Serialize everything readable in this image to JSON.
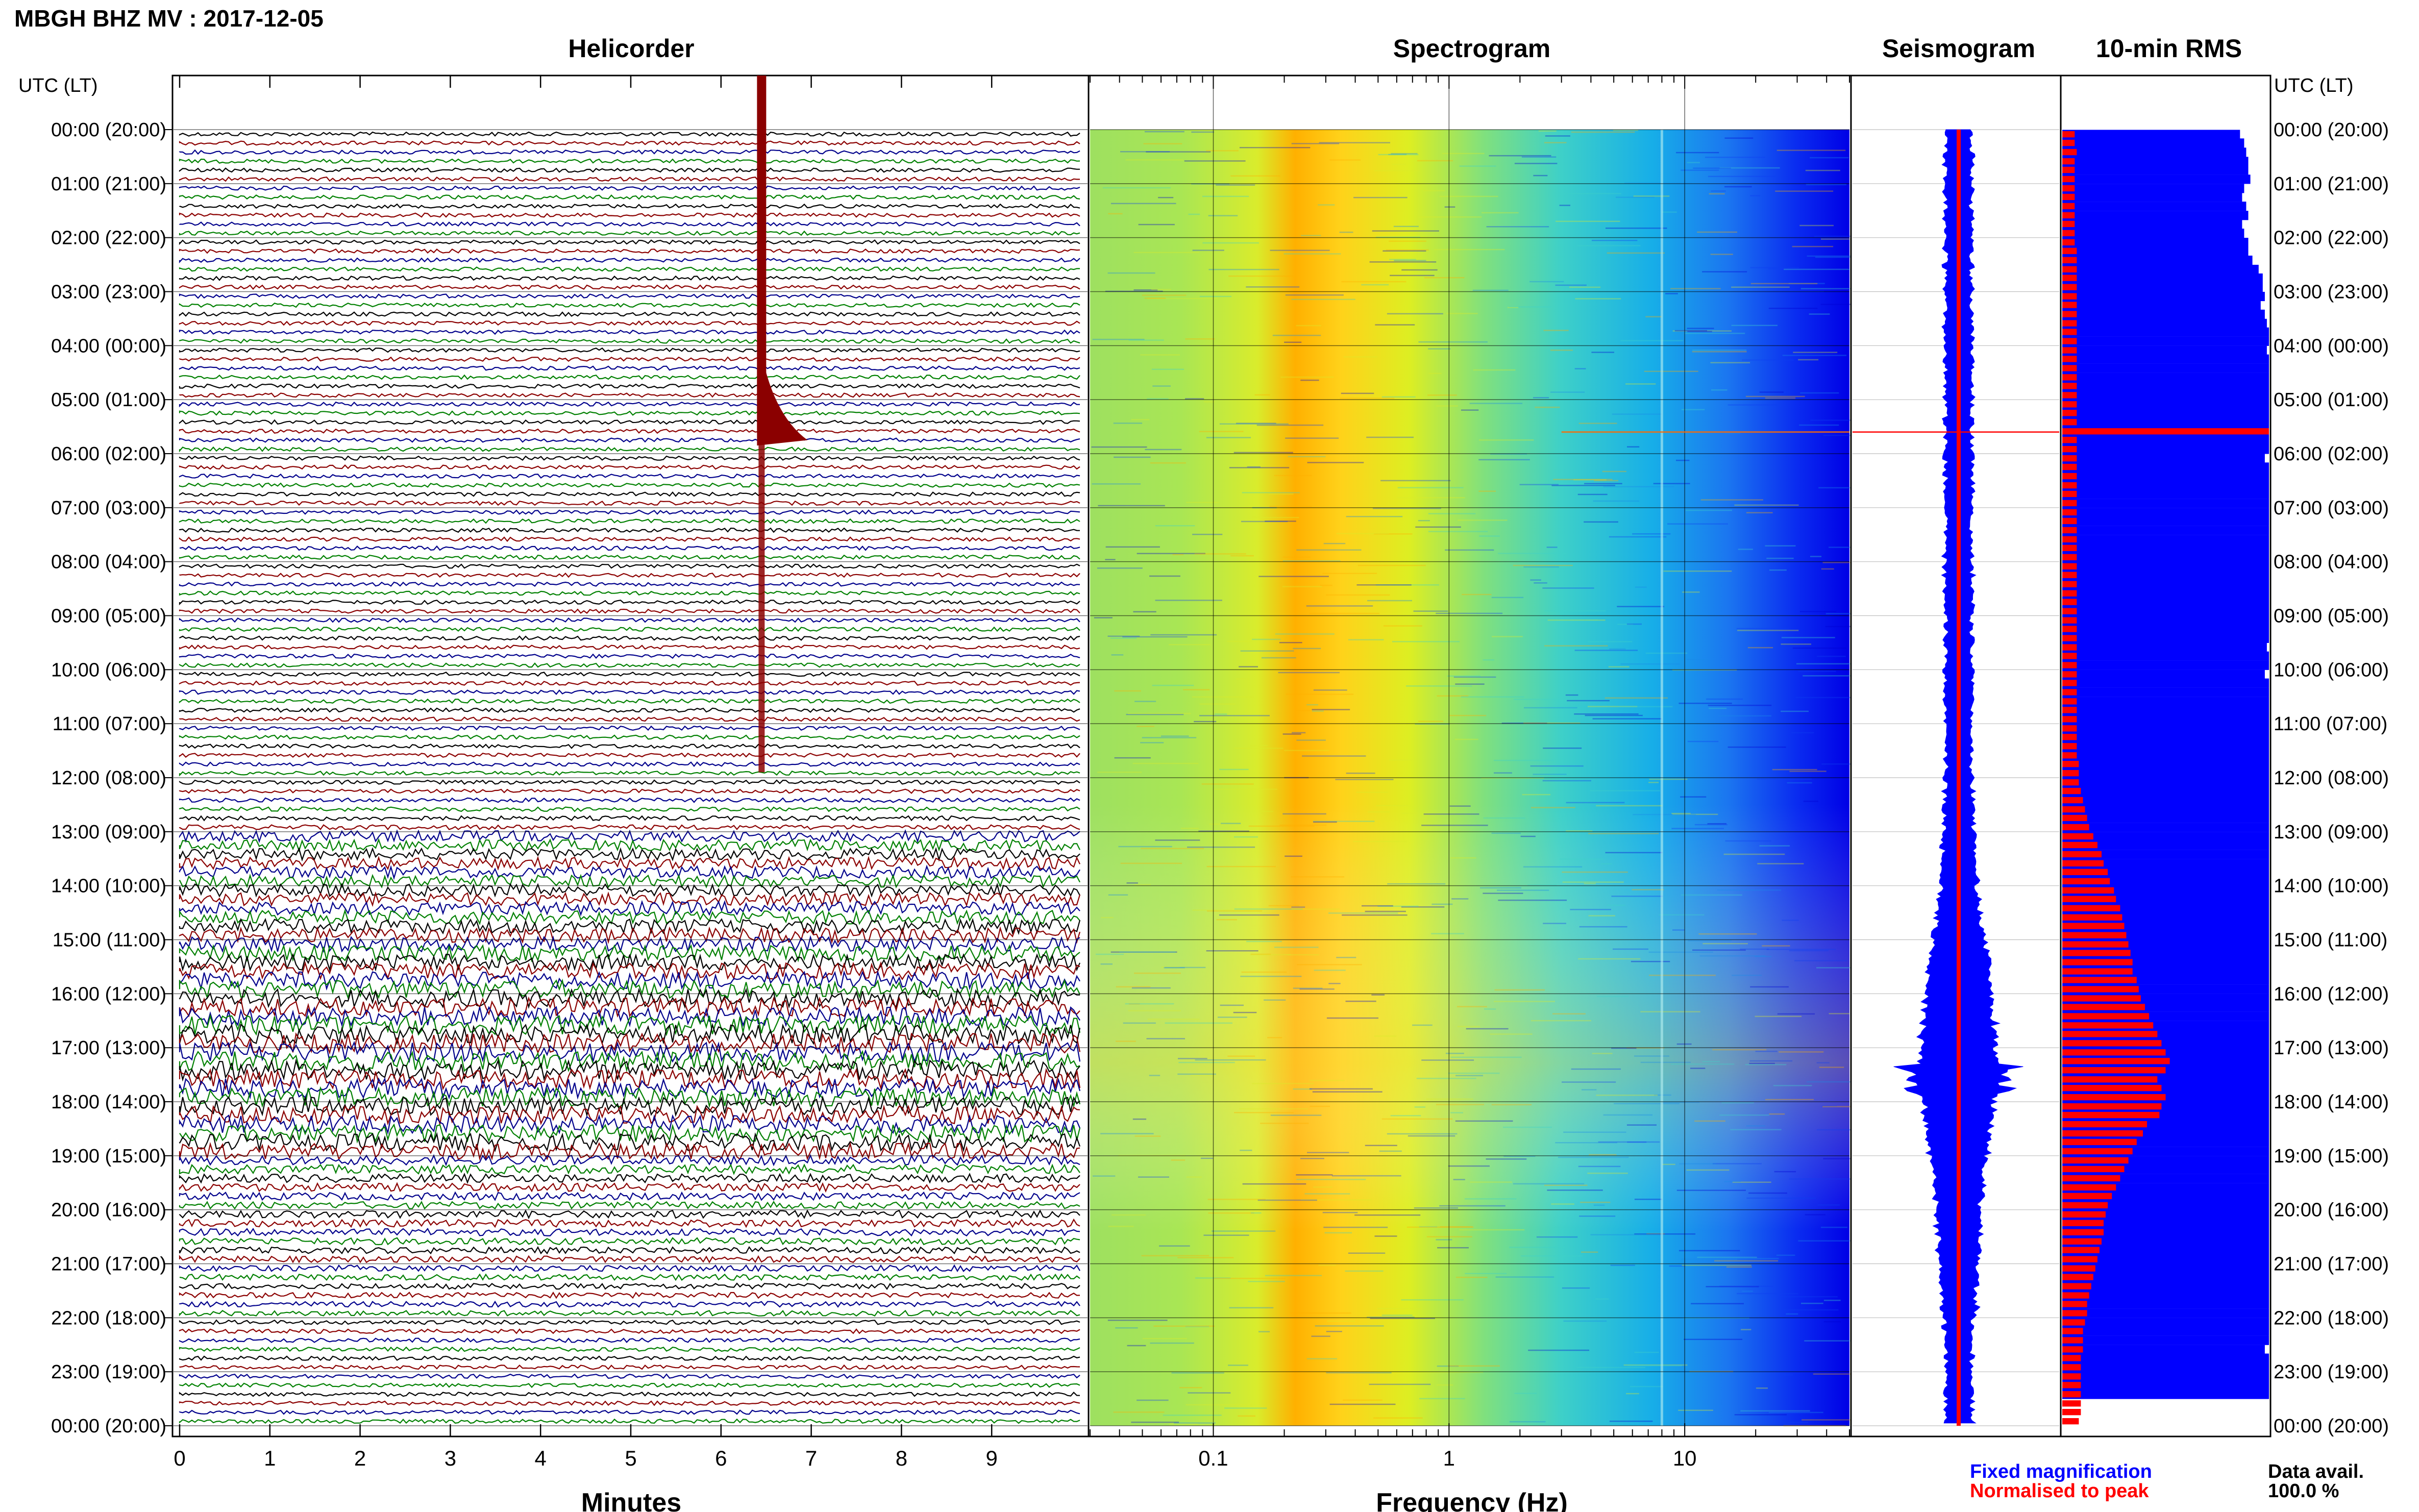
{
  "title": "MBGH BHZ MV : 2017-12-05",
  "panels": {
    "helicorder": "Helicorder",
    "spectrogram": "Spectrogram",
    "seismogram": "Seismogram",
    "rms": "10-min RMS"
  },
  "axis": {
    "utc_header": "UTC (LT)",
    "minutes_label": "Minutes",
    "frequency_label": "Frequency (Hz)"
  },
  "legend": {
    "fixed": "Fixed magnification",
    "normalised": "Normalised to peak",
    "fixed_color": "#0000ff",
    "normalised_color": "#ff0000"
  },
  "data_avail": {
    "label": "Data avail.",
    "value": "100.0 %"
  },
  "trace_colors": [
    "#000000",
    "#8b0000",
    "#00008b",
    "#008000"
  ],
  "chart_data": {
    "type": "heatmap",
    "time_labels": [
      "00:00 (20:00)",
      "01:00 (21:00)",
      "02:00 (22:00)",
      "03:00 (23:00)",
      "04:00 (00:00)",
      "05:00 (01:00)",
      "06:00 (02:00)",
      "07:00 (03:00)",
      "08:00 (04:00)",
      "09:00 (05:00)",
      "10:00 (06:00)",
      "11:00 (07:00)",
      "12:00 (08:00)",
      "13:00 (09:00)",
      "14:00 (10:00)",
      "15:00 (11:00)",
      "16:00 (12:00)",
      "17:00 (13:00)",
      "18:00 (14:00)",
      "19:00 (15:00)",
      "20:00 (16:00)",
      "21:00 (17:00)",
      "22:00 (18:00)",
      "23:00 (19:00)",
      "00:00 (20:00)"
    ],
    "minutes_ticks": [
      "0",
      "1",
      "2",
      "3",
      "4",
      "5",
      "6",
      "7",
      "8",
      "9"
    ],
    "minutes_range": [
      0,
      10
    ],
    "frequency_ticks": [
      "0.1",
      "1",
      "10"
    ],
    "frequency_scale": "log",
    "frequency_range": [
      0.03,
      50
    ],
    "event_minute": 6.45,
    "event_hour": 5.6,
    "rms_hours": [
      0.17,
      0.33,
      0.5,
      0.67,
      0.83,
      1.0,
      1.17,
      1.33,
      1.5,
      1.67,
      1.83,
      2.0,
      2.17,
      2.33,
      2.5,
      2.67,
      2.83,
      3.0,
      3.17,
      3.33,
      3.5,
      3.67,
      3.83,
      4.0,
      4.17,
      4.33,
      4.5,
      4.67,
      4.83,
      5.0,
      5.17,
      5.33,
      5.5,
      5.67,
      5.83,
      6.0,
      6.17,
      6.33,
      6.5,
      6.67,
      6.83,
      7.0,
      7.17,
      7.33,
      7.5,
      7.67,
      7.83,
      8.0,
      8.17,
      8.33,
      8.5,
      8.67,
      8.83,
      9.0,
      9.17,
      9.33,
      9.5,
      9.67,
      9.83,
      10.0,
      10.17,
      10.33,
      10.5,
      10.67,
      10.83,
      11.0,
      11.17,
      11.33,
      11.5,
      11.67,
      11.83,
      12.0,
      12.17,
      12.33,
      12.5,
      12.67,
      12.83,
      13.0,
      13.17,
      13.33,
      13.5,
      13.67,
      13.83,
      14.0,
      14.17,
      14.33,
      14.5,
      14.67,
      14.83,
      15.0,
      15.17,
      15.33,
      15.5,
      15.67,
      15.83,
      16.0,
      16.17,
      16.33,
      16.5,
      16.67,
      16.83,
      17.0,
      17.17,
      17.33,
      17.5,
      17.67,
      17.83,
      18.0,
      18.17,
      18.33,
      18.5,
      18.67,
      18.83,
      19.0,
      19.17,
      19.33,
      19.5,
      19.67,
      19.83,
      20.0,
      20.17,
      20.33,
      20.5,
      20.67,
      20.83,
      21.0,
      21.17,
      21.33,
      21.5,
      21.67,
      21.83,
      22.0,
      22.17,
      22.33,
      22.5,
      22.67,
      22.83,
      23.0,
      23.17,
      23.33,
      23.5,
      23.67,
      23.83,
      24.0
    ],
    "rms_fixed": [
      0.86,
      0.88,
      0.89,
      0.9,
      0.9,
      0.91,
      0.88,
      0.87,
      0.89,
      0.9,
      0.87,
      0.88,
      0.9,
      0.9,
      0.92,
      0.95,
      0.97,
      0.97,
      0.98,
      0.96,
      0.98,
      0.99,
      1.0,
      1.0,
      0.99,
      1.0,
      1.0,
      1.0,
      1.0,
      1.0,
      1.0,
      1.0,
      1.0,
      1.0,
      1.0,
      1.0,
      0.98,
      1.0,
      1.0,
      1.0,
      1.0,
      1.0,
      1.0,
      1.0,
      1.0,
      1.0,
      1.0,
      1.0,
      1.0,
      1.0,
      1.0,
      1.0,
      1.0,
      1.0,
      1.0,
      1.0,
      1.0,
      0.99,
      1.0,
      1.0,
      0.98,
      1.0,
      1.0,
      1.0,
      1.0,
      1.0,
      1.0,
      1.0,
      1.0,
      1.0,
      1.0,
      1.0,
      1.0,
      1.0,
      1.0,
      1.0,
      1.0,
      1.0,
      1.0,
      1.0,
      1.0,
      1.0,
      1.0,
      1.0,
      1.0,
      1.0,
      1.0,
      1.0,
      1.0,
      1.0,
      1.0,
      1.0,
      1.0,
      1.0,
      1.0,
      1.0,
      1.0,
      1.0,
      1.0,
      1.0,
      1.0,
      1.0,
      1.0,
      1.0,
      1.0,
      1.0,
      1.0,
      1.0,
      1.0,
      1.0,
      1.0,
      1.0,
      1.0,
      1.0,
      1.0,
      1.0,
      1.0,
      1.0,
      1.0,
      1.0,
      1.0,
      1.0,
      1.0,
      1.0,
      1.0,
      1.0,
      1.0,
      1.0,
      1.0,
      1.0,
      1.0,
      1.0,
      1.0,
      1.0,
      1.0,
      0.98,
      1.0,
      1.0,
      1.0,
      1.0,
      1.0
    ],
    "rms_normalised": [
      0.06,
      0.06,
      0.07,
      0.06,
      0.06,
      0.06,
      0.06,
      0.06,
      0.06,
      0.06,
      0.06,
      0.06,
      0.06,
      0.07,
      0.07,
      0.07,
      0.07,
      0.07,
      0.07,
      0.07,
      0.07,
      0.07,
      0.07,
      0.07,
      0.07,
      0.07,
      0.07,
      0.07,
      0.07,
      0.07,
      0.07,
      0.07,
      0.07,
      1.0,
      0.07,
      0.07,
      0.07,
      0.07,
      0.07,
      0.07,
      0.07,
      0.07,
      0.07,
      0.07,
      0.07,
      0.07,
      0.07,
      0.07,
      0.07,
      0.07,
      0.07,
      0.07,
      0.07,
      0.07,
      0.07,
      0.07,
      0.07,
      0.07,
      0.07,
      0.07,
      0.07,
      0.07,
      0.07,
      0.07,
      0.07,
      0.07,
      0.07,
      0.07,
      0.07,
      0.07,
      0.08,
      0.08,
      0.08,
      0.09,
      0.1,
      0.11,
      0.12,
      0.13,
      0.15,
      0.17,
      0.19,
      0.2,
      0.22,
      0.23,
      0.25,
      0.26,
      0.28,
      0.29,
      0.3,
      0.31,
      0.32,
      0.33,
      0.34,
      0.34,
      0.36,
      0.37,
      0.38,
      0.4,
      0.42,
      0.44,
      0.46,
      0.48,
      0.5,
      0.52,
      0.5,
      0.46,
      0.48,
      0.5,
      0.48,
      0.47,
      0.41,
      0.39,
      0.36,
      0.34,
      0.32,
      0.3,
      0.28,
      0.26,
      0.24,
      0.22,
      0.21,
      0.2,
      0.2,
      0.19,
      0.18,
      0.17,
      0.16,
      0.15,
      0.14,
      0.13,
      0.12,
      0.12,
      0.11,
      0.1,
      0.1,
      0.1,
      0.09,
      0.09,
      0.09,
      0.09,
      0.09,
      0.09,
      0.09,
      0.08
    ]
  }
}
